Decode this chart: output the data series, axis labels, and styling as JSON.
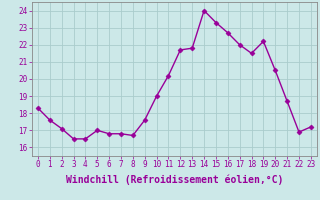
{
  "hours": [
    0,
    1,
    2,
    3,
    4,
    5,
    6,
    7,
    8,
    9,
    10,
    11,
    12,
    13,
    14,
    15,
    16,
    17,
    18,
    19,
    20,
    21,
    22,
    23
  ],
  "values": [
    18.3,
    17.6,
    17.1,
    16.5,
    16.5,
    17.0,
    16.8,
    16.8,
    16.7,
    17.6,
    19.0,
    20.2,
    21.7,
    21.8,
    24.0,
    23.3,
    22.7,
    22.0,
    21.5,
    22.2,
    20.5,
    18.7,
    16.9,
    17.2
  ],
  "line_color": "#990099",
  "marker": "D",
  "markersize": 2.5,
  "linewidth": 1.0,
  "bg_color": "#cce8e8",
  "grid_color": "#aacccc",
  "xlabel": "Windchill (Refroidissement éolien,°C)",
  "xlabel_color": "#990099",
  "ylim": [
    15.5,
    24.5
  ],
  "yticks": [
    16,
    17,
    18,
    19,
    20,
    21,
    22,
    23,
    24
  ],
  "xticks": [
    0,
    1,
    2,
    3,
    4,
    5,
    6,
    7,
    8,
    9,
    10,
    11,
    12,
    13,
    14,
    15,
    16,
    17,
    18,
    19,
    20,
    21,
    22,
    23
  ],
  "tick_fontsize": 5.5,
  "xlabel_fontsize": 7.0,
  "tick_color": "#990099",
  "axis_color": "#990099",
  "spine_color": "#888888"
}
